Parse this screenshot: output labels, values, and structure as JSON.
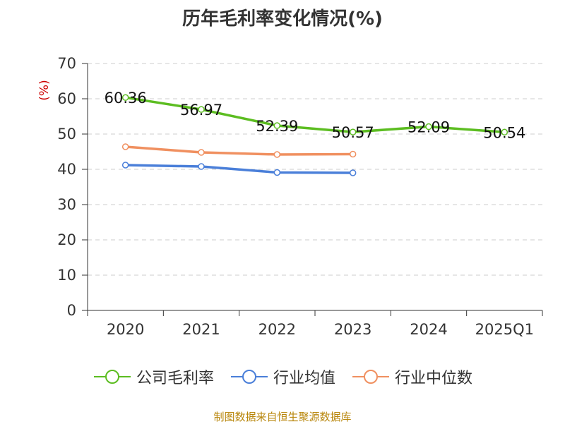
{
  "title": "历年毛利率变化情况(%)",
  "source": "制图数据来自恒生聚源数据库",
  "colors": {
    "company": "#5cbd21",
    "industry_avg": "#4a7fd9",
    "industry_median": "#f09060",
    "axis": "#333333",
    "grid": "#cccccc",
    "unit": "#cc0000"
  },
  "chart_data": {
    "type": "line",
    "title": "历年毛利率变化情况(%)",
    "xlabel": "",
    "ylabel": "(%)",
    "categories": [
      "2020",
      "2021",
      "2022",
      "2023",
      "2024",
      "2025Q1"
    ],
    "ylim": [
      0,
      70
    ],
    "yticks": [
      0,
      10,
      20,
      30,
      40,
      50,
      60,
      70
    ],
    "grid": true,
    "legend_position": "bottom",
    "series": [
      {
        "name": "公司毛利率",
        "color": "#5cbd21",
        "values": [
          60.36,
          56.97,
          52.39,
          50.57,
          52.09,
          50.54
        ],
        "show_labels": true
      },
      {
        "name": "行业均值",
        "color": "#4a7fd9",
        "values": [
          41.2,
          40.8,
          39.1,
          39.0,
          null,
          null
        ],
        "show_labels": false
      },
      {
        "name": "行业中位数",
        "color": "#f09060",
        "values": [
          46.4,
          44.8,
          44.2,
          44.3,
          null,
          null
        ],
        "show_labels": false
      }
    ]
  }
}
